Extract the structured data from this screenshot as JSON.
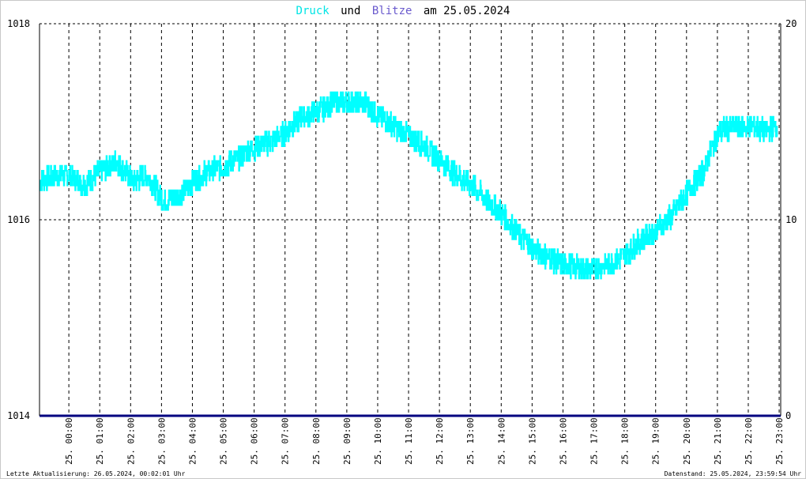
{
  "title": {
    "part1": "Druck",
    "part2": "und",
    "part3": "Blitze",
    "part4": "am 25.05.2024",
    "color_druck": "#00e5e5",
    "color_blitze": "#6a5acd"
  },
  "footer": {
    "left": "Letzte Aktualisierung: 26.05.2024, 00:02:01 Uhr",
    "right": "Datenstand: 25.05.2024, 23:59:54 Uhr"
  },
  "chart_data": {
    "type": "line",
    "title": "Druck und Blitze am 25.05.2024",
    "grid": true,
    "y_left": {
      "ticks": [
        "1018",
        "1016",
        "1014"
      ],
      "range": [
        1014,
        1018
      ]
    },
    "y_right": {
      "ticks": [
        "20",
        "10",
        "0"
      ],
      "range": [
        0,
        20
      ]
    },
    "x_range": [
      0,
      24
    ],
    "x_ticks": [
      "25. 00:00",
      "25. 01:00",
      "25. 02:00",
      "25. 03:00",
      "25. 04:00",
      "25. 05:00",
      "25. 06:00",
      "25. 07:00",
      "25. 08:00",
      "25. 09:00",
      "25. 10:00",
      "25. 11:00",
      "25. 12:00",
      "25. 13:00",
      "25. 14:00",
      "25. 15:00",
      "25. 16:00",
      "25. 17:00",
      "25. 18:00",
      "25. 19:00",
      "25. 20:00",
      "25. 21:00",
      "25. 22:00",
      "25. 23:00"
    ],
    "series": [
      {
        "name": "Druck",
        "axis": "left",
        "color": "#00ffff",
        "x": [
          0.0,
          0.5,
          1.0,
          1.5,
          2.0,
          2.5,
          3.0,
          3.5,
          4.0,
          4.5,
          5.0,
          5.5,
          6.0,
          6.5,
          7.0,
          7.5,
          8.0,
          8.5,
          9.0,
          9.5,
          10.0,
          10.5,
          11.0,
          11.5,
          12.0,
          12.5,
          13.0,
          13.5,
          14.0,
          14.5,
          15.0,
          15.5,
          16.0,
          16.5,
          17.0,
          17.5,
          18.0,
          18.5,
          19.0,
          19.5,
          20.0,
          20.5,
          21.0,
          21.5,
          22.0,
          22.5,
          23.0,
          23.5,
          23.9
        ],
        "y": [
          1016.4,
          1016.45,
          1016.45,
          1016.35,
          1016.5,
          1016.6,
          1016.4,
          1016.45,
          1016.2,
          1016.25,
          1016.4,
          1016.5,
          1016.55,
          1016.65,
          1016.75,
          1016.8,
          1016.9,
          1017.05,
          1017.1,
          1017.2,
          1017.2,
          1017.2,
          1017.05,
          1016.95,
          1016.85,
          1016.75,
          1016.6,
          1016.45,
          1016.35,
          1016.2,
          1016.05,
          1015.85,
          1015.7,
          1015.6,
          1015.55,
          1015.5,
          1015.5,
          1015.55,
          1015.65,
          1015.8,
          1015.9,
          1016.05,
          1016.3,
          1016.5,
          1016.9,
          1016.95,
          1016.95,
          1016.9,
          1016.95
        ],
        "band": 0.12
      },
      {
        "name": "Blitze",
        "axis": "right",
        "color": "#000080",
        "x": [
          0,
          24
        ],
        "y": [
          0,
          0
        ]
      }
    ]
  }
}
